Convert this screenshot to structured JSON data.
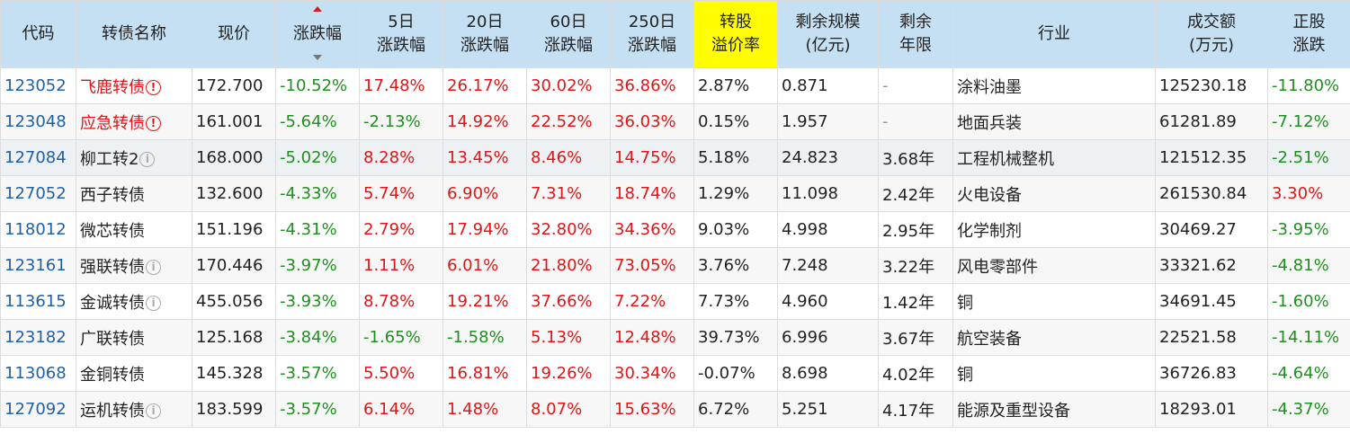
{
  "headers": [
    {
      "key": "code",
      "lines": [
        "代码"
      ]
    },
    {
      "key": "name",
      "lines": [
        "转债名称"
      ]
    },
    {
      "key": "price",
      "lines": [
        "现价"
      ]
    },
    {
      "key": "chg",
      "lines": [
        "涨跌幅"
      ],
      "sorted": true
    },
    {
      "key": "chg5",
      "lines": [
        "5日",
        "涨跌幅"
      ]
    },
    {
      "key": "chg20",
      "lines": [
        "20日",
        "涨跌幅"
      ]
    },
    {
      "key": "chg60",
      "lines": [
        "60日",
        "涨跌幅"
      ]
    },
    {
      "key": "chg250",
      "lines": [
        "250日",
        "涨跌幅"
      ]
    },
    {
      "key": "premium",
      "lines": [
        "转股",
        "溢价率"
      ],
      "highlight": true
    },
    {
      "key": "size",
      "lines": [
        "剩余规模",
        "(亿元)"
      ]
    },
    {
      "key": "years",
      "lines": [
        "剩余",
        "年限"
      ]
    },
    {
      "key": "industry",
      "lines": [
        "行业"
      ]
    },
    {
      "key": "turnover",
      "lines": [
        "成交额",
        "(万元)"
      ]
    },
    {
      "key": "stock_chg",
      "lines": [
        "正股",
        "涨跌"
      ]
    }
  ],
  "rows": [
    {
      "code": "123052",
      "name": "飞鹿转债",
      "warn": "red",
      "price": "172.700",
      "chg": "-10.52%",
      "chg5": "17.48%",
      "chg20": "26.17%",
      "chg60": "30.02%",
      "chg250": "36.86%",
      "premium": "2.87%",
      "size": "0.871",
      "years": "-",
      "industry": "涂料油墨",
      "turnover": "125230.18",
      "stock_chg": "-11.80%"
    },
    {
      "code": "123048",
      "name": "应急转债",
      "warn": "red",
      "price": "161.001",
      "chg": "-5.64%",
      "chg5": "-2.13%",
      "chg20": "14.92%",
      "chg60": "22.52%",
      "chg250": "36.03%",
      "premium": "0.15%",
      "size": "1.957",
      "years": "-",
      "industry": "地面兵装",
      "turnover": "61281.89",
      "stock_chg": "-7.12%"
    },
    {
      "code": "127084",
      "name": "柳工转2",
      "warn": "grey",
      "price": "168.000",
      "chg": "-5.02%",
      "chg5": "8.28%",
      "chg20": "13.45%",
      "chg60": "8.46%",
      "chg250": "14.75%",
      "premium": "5.18%",
      "size": "24.823",
      "years": "3.68年",
      "industry": "工程机械整机",
      "turnover": "121512.35",
      "stock_chg": "-2.51%"
    },
    {
      "code": "127052",
      "name": "西子转债",
      "warn": "",
      "price": "132.600",
      "chg": "-4.33%",
      "chg5": "5.74%",
      "chg20": "6.90%",
      "chg60": "7.31%",
      "chg250": "18.74%",
      "premium": "1.29%",
      "size": "11.098",
      "years": "2.42年",
      "industry": "火电设备",
      "turnover": "261530.84",
      "stock_chg": "3.30%"
    },
    {
      "code": "118012",
      "name": "微芯转债",
      "warn": "",
      "price": "151.196",
      "chg": "-4.31%",
      "chg5": "2.79%",
      "chg20": "17.94%",
      "chg60": "32.80%",
      "chg250": "34.36%",
      "premium": "9.03%",
      "size": "4.998",
      "years": "2.95年",
      "industry": "化学制剂",
      "turnover": "30469.27",
      "stock_chg": "-3.95%"
    },
    {
      "code": "123161",
      "name": "强联转债",
      "warn": "grey",
      "price": "170.446",
      "chg": "-3.97%",
      "chg5": "1.11%",
      "chg20": "6.01%",
      "chg60": "21.80%",
      "chg250": "73.05%",
      "premium": "3.76%",
      "size": "7.248",
      "years": "3.22年",
      "industry": "风电零部件",
      "turnover": "33321.62",
      "stock_chg": "-4.81%"
    },
    {
      "code": "113615",
      "name": "金诚转债",
      "warn": "grey",
      "price": "455.056",
      "chg": "-3.93%",
      "chg5": "8.78%",
      "chg20": "19.21%",
      "chg60": "37.66%",
      "chg250": "7.22%",
      "premium": "7.73%",
      "size": "4.960",
      "years": "1.42年",
      "industry": "铜",
      "turnover": "34691.45",
      "stock_chg": "-1.60%"
    },
    {
      "code": "123182",
      "name": "广联转债",
      "warn": "",
      "price": "125.168",
      "chg": "-3.84%",
      "chg5": "-1.65%",
      "chg20": "-1.58%",
      "chg60": "5.13%",
      "chg250": "12.48%",
      "premium": "39.73%",
      "size": "6.996",
      "years": "3.67年",
      "industry": "航空装备",
      "turnover": "22521.58",
      "stock_chg": "-14.11%"
    },
    {
      "code": "113068",
      "name": "金铜转债",
      "warn": "",
      "price": "145.328",
      "chg": "-3.57%",
      "chg5": "5.50%",
      "chg20": "16.81%",
      "chg60": "19.26%",
      "chg250": "30.34%",
      "premium": "-0.07%",
      "size": "8.698",
      "years": "4.02年",
      "industry": "铜",
      "turnover": "36726.83",
      "stock_chg": "-4.64%"
    },
    {
      "code": "127092",
      "name": "运机转债",
      "warn": "grey",
      "price": "183.599",
      "chg": "-3.57%",
      "chg5": "6.14%",
      "chg20": "1.48%",
      "chg60": "8.07%",
      "chg250": "15.63%",
      "premium": "6.72%",
      "size": "5.251",
      "years": "4.17年",
      "industry": "能源及重型设备",
      "turnover": "18293.01",
      "stock_chg": "-4.37%"
    }
  ],
  "colors": {
    "header_bg": "#c5dff3",
    "highlight": "#fffd00",
    "up": "#e01515",
    "down": "#1f8f1f",
    "code": "#1f5fa5"
  }
}
